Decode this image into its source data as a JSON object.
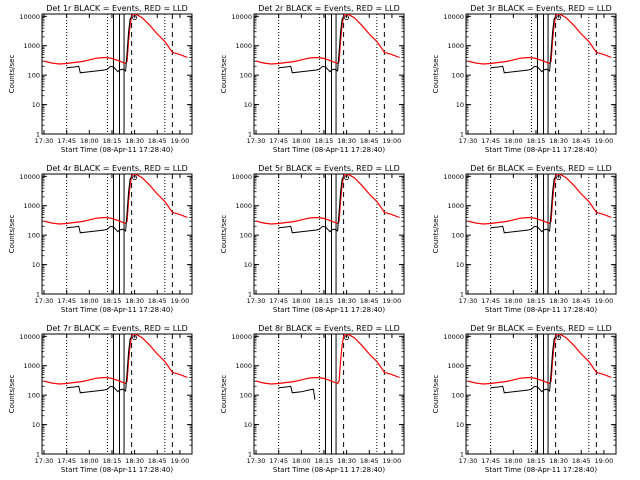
{
  "chart_data": {
    "type": "line",
    "x_ticks": [
      "17:30",
      "17:45",
      "18:00",
      "18:15",
      "18:30",
      "18:45",
      "19:00"
    ],
    "y_ticks": [
      "1",
      "10",
      "100",
      "1000",
      "10000"
    ],
    "y_scale": "log",
    "xlim": [
      "17:28:40",
      "19:08"
    ],
    "ylim": [
      1,
      12000
    ],
    "xlabel": "Start Time (08-Apr-11 17:28:40)",
    "ylabel": "Counts/sec",
    "colors": {
      "events": "#000000",
      "lld": "#ff0000"
    },
    "dotted_lines": [
      "17:45",
      "18:12",
      "18:50"
    ],
    "solid_lines": [
      "18:16",
      "18:20",
      "18:23"
    ],
    "dashed_lines": [
      "18:28",
      "18:55"
    ],
    "lld": {
      "time": [
        "17:30",
        "17:35",
        "17:40",
        "17:45",
        "17:50",
        "17:55",
        "18:00",
        "18:05",
        "18:10",
        "18:15",
        "18:20",
        "18:24",
        "18:25",
        "18:26",
        "18:27",
        "18:28",
        "18:29",
        "18:30",
        "18:32",
        "18:35",
        "18:40",
        "18:45",
        "18:50",
        "18:55",
        "19:00",
        "19:05"
      ],
      "counts": [
        300,
        260,
        240,
        250,
        270,
        290,
        330,
        380,
        400,
        370,
        300,
        250,
        300,
        1500,
        5000,
        10000,
        12000,
        12000,
        11000,
        9000,
        5000,
        2500,
        1400,
        600,
        500,
        400
      ]
    },
    "panels": [
      {
        "title": "Det 1r  BLACK = Events, RED = LLD",
        "events": {
          "time": [
            "17:45",
            "17:50",
            "17:53",
            "17:54",
            "18:00",
            "18:05",
            "18:10",
            "18:12",
            "18:14",
            "18:16",
            "18:19",
            "18:20",
            "18:22",
            "18:24",
            "18:25",
            "18:26",
            "18:27",
            "18:28"
          ],
          "counts": [
            180,
            190,
            200,
            120,
            130,
            140,
            150,
            160,
            200,
            190,
            130,
            150,
            160,
            140,
            600,
            3000,
            8000,
            10000
          ]
        }
      },
      {
        "title": "Det 2r  BLACK = Events, RED = LLD",
        "events": {
          "time": [
            "17:45",
            "17:50",
            "17:53",
            "17:54",
            "18:00",
            "18:05",
            "18:10",
            "18:12",
            "18:14",
            "18:16",
            "18:19",
            "18:20",
            "18:22",
            "18:24",
            "18:25",
            "18:26",
            "18:27",
            "18:28"
          ],
          "counts": [
            180,
            190,
            200,
            120,
            130,
            140,
            150,
            160,
            200,
            190,
            130,
            150,
            160,
            140,
            600,
            3000,
            8000,
            10000
          ]
        }
      },
      {
        "title": "Det 3r  BLACK = Events, RED = LLD",
        "events": {
          "time": [
            "17:45",
            "17:50",
            "17:53",
            "17:54",
            "18:00",
            "18:05",
            "18:10",
            "18:12",
            "18:14",
            "18:16",
            "18:19",
            "18:20",
            "18:22",
            "18:24",
            "18:25",
            "18:26",
            "18:27",
            "18:28"
          ],
          "counts": [
            180,
            190,
            200,
            120,
            130,
            140,
            150,
            160,
            200,
            190,
            130,
            150,
            160,
            140,
            600,
            3000,
            8000,
            10000
          ]
        }
      },
      {
        "title": "Det 4r  BLACK = Events, RED = LLD",
        "events": {
          "time": [
            "17:45",
            "17:50",
            "17:53",
            "17:54",
            "18:00",
            "18:05",
            "18:10",
            "18:12",
            "18:14",
            "18:16",
            "18:19",
            "18:20",
            "18:22",
            "18:24",
            "18:25",
            "18:26",
            "18:27",
            "18:28"
          ],
          "counts": [
            180,
            190,
            200,
            120,
            130,
            140,
            150,
            160,
            200,
            190,
            130,
            150,
            160,
            140,
            600,
            3000,
            8000,
            10000
          ]
        }
      },
      {
        "title": "Det 5r  BLACK = Events, RED = LLD",
        "events": {
          "time": [
            "17:45",
            "17:50",
            "17:53",
            "17:54",
            "18:00",
            "18:05",
            "18:10",
            "18:12",
            "18:14",
            "18:16",
            "18:19",
            "18:20",
            "18:22",
            "18:24",
            "18:25",
            "18:26",
            "18:27",
            "18:28"
          ],
          "counts": [
            180,
            190,
            200,
            120,
            130,
            140,
            150,
            160,
            200,
            190,
            130,
            150,
            160,
            140,
            600,
            3000,
            8000,
            10000
          ]
        }
      },
      {
        "title": "Det 6r  BLACK = Events, RED = LLD",
        "events": {
          "time": [
            "17:45",
            "17:50",
            "17:53",
            "17:54",
            "18:00",
            "18:05",
            "18:10",
            "18:12",
            "18:14",
            "18:16",
            "18:19",
            "18:20",
            "18:22",
            "18:24",
            "18:25",
            "18:26",
            "18:27",
            "18:28"
          ],
          "counts": [
            180,
            190,
            200,
            120,
            130,
            140,
            150,
            160,
            200,
            190,
            130,
            150,
            160,
            140,
            600,
            3000,
            8000,
            10000
          ]
        }
      },
      {
        "title": "Det 7r  BLACK = Events, RED = LLD",
        "events": {
          "time": [
            "17:45",
            "17:50",
            "17:53",
            "17:54",
            "18:00",
            "18:05",
            "18:10",
            "18:12",
            "18:14",
            "18:16",
            "18:19",
            "18:20",
            "18:22",
            "18:24",
            "18:25",
            "18:26",
            "18:27",
            "18:28"
          ],
          "counts": [
            180,
            190,
            200,
            120,
            130,
            140,
            150,
            160,
            200,
            190,
            130,
            150,
            160,
            140,
            600,
            3000,
            8000,
            10000
          ]
        }
      },
      {
        "title": "Det 8r  BLACK = Events, RED = LLD",
        "events": {
          "time": [
            "17:45",
            "17:50",
            "17:53",
            "17:54",
            "18:00",
            "18:05",
            "18:08",
            "18:09"
          ],
          "counts": [
            180,
            190,
            200,
            120,
            130,
            150,
            160,
            70
          ]
        }
      },
      {
        "title": "Det 9r  BLACK = Events, RED = LLD",
        "events": {
          "time": [
            "17:45",
            "17:50",
            "17:53",
            "17:54",
            "18:00",
            "18:05",
            "18:10",
            "18:12",
            "18:14",
            "18:16",
            "18:19",
            "18:20",
            "18:22",
            "18:24",
            "18:25",
            "18:26",
            "18:27",
            "18:28"
          ],
          "counts": [
            180,
            190,
            200,
            120,
            130,
            140,
            150,
            160,
            200,
            190,
            130,
            150,
            160,
            140,
            600,
            3000,
            8000,
            10000
          ]
        }
      }
    ]
  }
}
